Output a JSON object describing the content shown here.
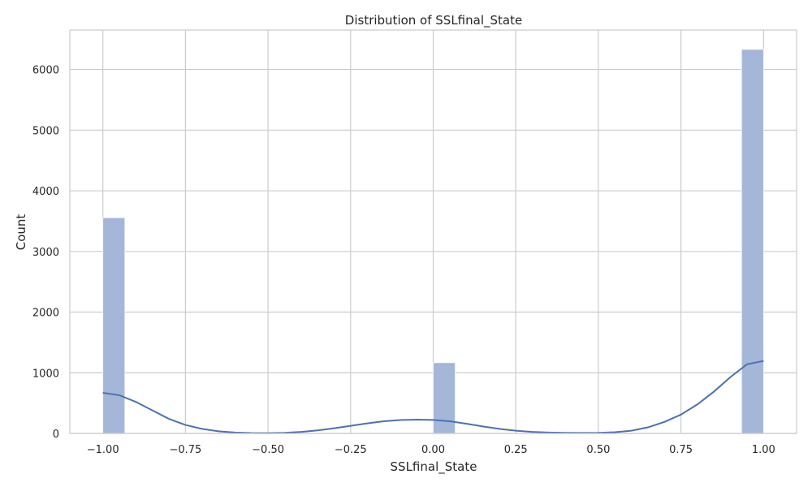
{
  "chart_data": {
    "type": "bar",
    "title": "Distribution of SSLfinal_State",
    "xlabel": "SSLfinal_State",
    "ylabel": "Count",
    "xlim": [
      -1.1,
      1.1
    ],
    "ylim": [
      0,
      6650
    ],
    "grid": true,
    "bins": [
      {
        "x0": -1.0,
        "x1": -0.9333,
        "count": 3557
      },
      {
        "x0": -0.0667,
        "x1": 0.0,
        "count": 0
      },
      {
        "x0": 0.0,
        "x1": 0.0667,
        "count": 1167
      },
      {
        "x0": 0.9333,
        "x1": 1.0,
        "count": 6331
      }
    ],
    "kde": {
      "x": [
        -1.0,
        -0.95,
        -0.9,
        -0.85,
        -0.8,
        -0.75,
        -0.7,
        -0.65,
        -0.6,
        -0.55,
        -0.5,
        -0.45,
        -0.4,
        -0.35,
        -0.3,
        -0.25,
        -0.2,
        -0.15,
        -0.1,
        -0.05,
        0.0,
        0.05,
        0.1,
        0.15,
        0.2,
        0.25,
        0.3,
        0.35,
        0.4,
        0.45,
        0.5,
        0.55,
        0.6,
        0.65,
        0.7,
        0.75,
        0.8,
        0.85,
        0.9,
        0.95,
        1.0
      ],
      "y": [
        670,
        630,
        520,
        380,
        240,
        140,
        75,
        35,
        15,
        6,
        5,
        10,
        25,
        50,
        85,
        125,
        165,
        200,
        220,
        228,
        222,
        200,
        160,
        115,
        75,
        45,
        25,
        15,
        10,
        8,
        10,
        20,
        45,
        100,
        190,
        310,
        480,
        690,
        930,
        1140,
        1195
      ]
    },
    "x_ticks": [
      -1.0,
      -0.75,
      -0.5,
      -0.25,
      0.0,
      0.25,
      0.5,
      0.75,
      1.0
    ],
    "x_tick_labels": [
      "−1.00",
      "−0.75",
      "−0.50",
      "−0.25",
      "0.00",
      "0.25",
      "0.50",
      "0.75",
      "1.00"
    ],
    "y_ticks": [
      0,
      1000,
      2000,
      3000,
      4000,
      5000,
      6000
    ],
    "y_tick_labels": [
      "0",
      "1000",
      "2000",
      "3000",
      "4000",
      "5000",
      "6000"
    ],
    "colors": {
      "bar_fill": "#a5b7d8",
      "kde_line": "#4c72b0",
      "grid": "#cccccc"
    }
  }
}
